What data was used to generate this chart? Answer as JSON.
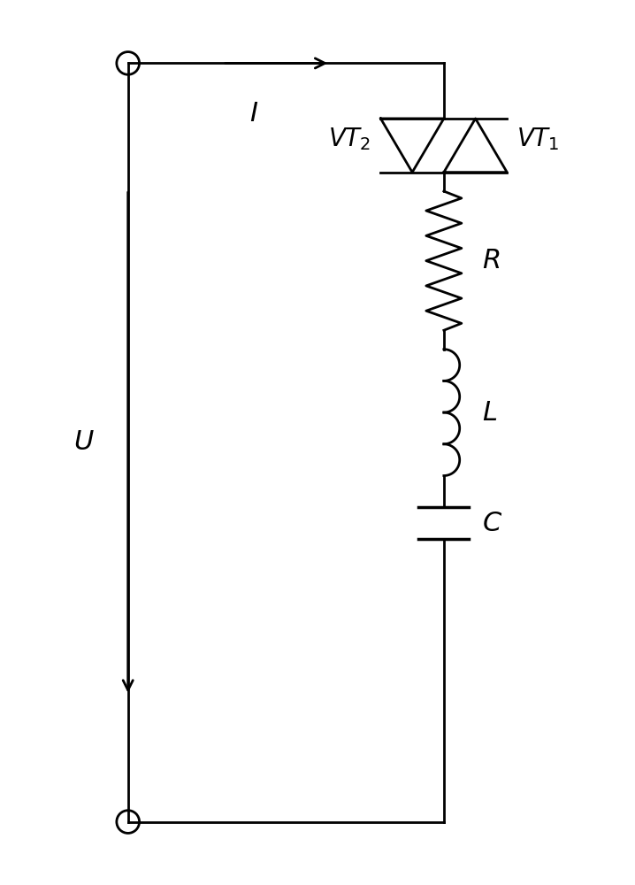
{
  "bg_color": "#ffffff",
  "line_color": "#000000",
  "line_width": 2.0,
  "fig_width": 7.18,
  "fig_height": 10.0,
  "dpi": 100,
  "label_I": "I",
  "label_U": "U",
  "label_R": "R",
  "label_L": "L",
  "label_C": "C",
  "label_VT1": "VT_1",
  "label_VT2": "VT_2",
  "font_size": 22
}
